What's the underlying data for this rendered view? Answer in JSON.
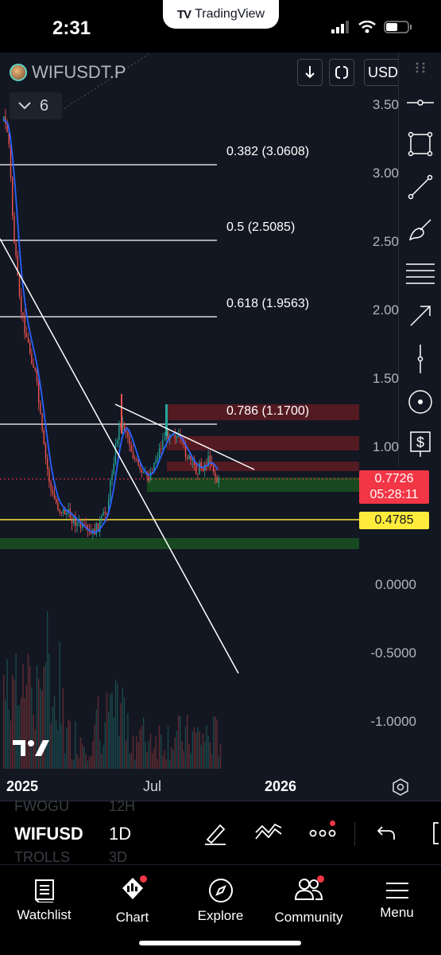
{
  "status_bar": {
    "time": "2:31",
    "app_pill": "TradingView",
    "app_logo": "TV"
  },
  "symbol": {
    "name": "WIFUSDT.P",
    "indicator_count": "6",
    "currency_button": "USD"
  },
  "price_axis": {
    "ticks": [
      "3.50",
      "3.00",
      "2.50",
      "2.00",
      "1.50",
      "1.00",
      "0.0000",
      "-0.5000",
      "-1.0000"
    ],
    "last_price": "0.7726",
    "countdown": "05:28:11",
    "marked_level": "0.4785"
  },
  "fib_levels": [
    {
      "label": "0.382 (3.0608)"
    },
    {
      "label": "0.5 (2.5085)"
    },
    {
      "label": "0.618 (1.9563)"
    },
    {
      "label": "0.786 (1.1700)"
    }
  ],
  "time_axis": {
    "labels": [
      "2025",
      "Jul",
      "2026"
    ]
  },
  "bottom_toolbar": {
    "symbol": "WIFUSD",
    "interval": "1D",
    "ghost_above_symbol": "FWOGU",
    "ghost_above_interval": "12H",
    "ghost_below_symbol": "TROLLS",
    "ghost_below_interval": "3D"
  },
  "nav": {
    "items": [
      {
        "label": "Watchlist",
        "icon": "watchlist-icon"
      },
      {
        "label": "Chart",
        "icon": "chart-icon"
      },
      {
        "label": "Explore",
        "icon": "compass-icon"
      },
      {
        "label": "Community",
        "icon": "community-icon"
      },
      {
        "label": "Menu",
        "icon": "menu-icon"
      }
    ]
  },
  "colors": {
    "background": "#131722",
    "up": "#26a69a",
    "down": "#ef5350",
    "ma_line": "#2962ff",
    "yellow_level": "#ffeb3b",
    "red_zone": "#8b1e22",
    "green_zone": "#1b5e20",
    "price_tag_red": "#f23645"
  }
}
